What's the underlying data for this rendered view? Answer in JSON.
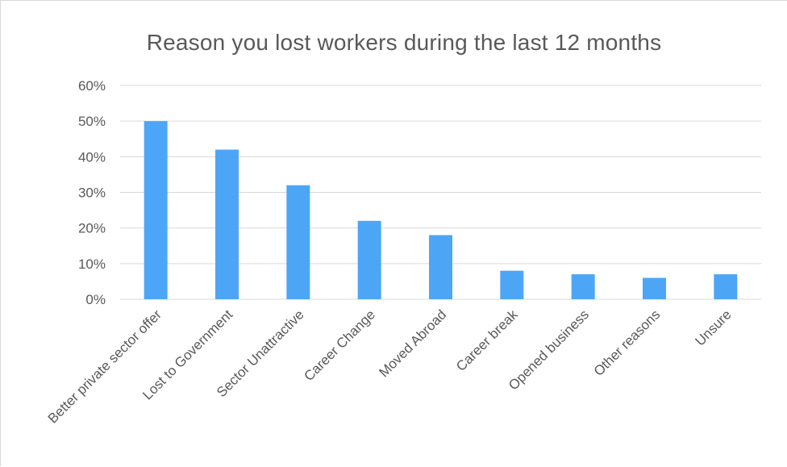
{
  "chart_data": {
    "type": "bar",
    "title": "Reason you lost workers during the last 12 months",
    "xlabel": "",
    "ylabel": "",
    "categories": [
      "Better private sector offer",
      "Lost to Government",
      "Sector Unattractive",
      "Career Change",
      "Moved Abroad",
      "Career break",
      "Opened business",
      "Other reasons",
      "Unsure"
    ],
    "values": [
      50,
      42,
      32,
      22,
      18,
      8,
      7,
      6,
      7
    ],
    "ylim": [
      0,
      60
    ],
    "yticks": [
      0,
      10,
      20,
      30,
      40,
      50,
      60
    ],
    "ytick_labels": [
      "0%",
      "10%",
      "20%",
      "30%",
      "40%",
      "50%",
      "60%"
    ],
    "grid": true,
    "legend": "none",
    "bar_color": "#4da6f5",
    "grid_color": "#d9d9d9",
    "text_color": "#595959"
  }
}
